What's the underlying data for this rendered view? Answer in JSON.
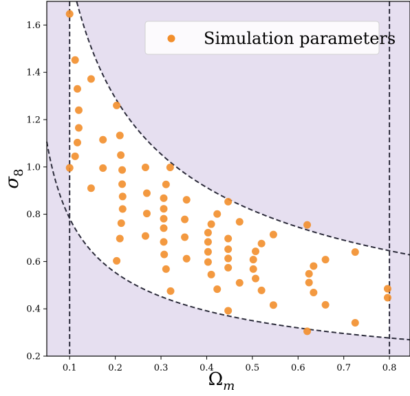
{
  "chart_data": {
    "type": "scatter",
    "xlabel": "Ω",
    "xlabel_sub": "m",
    "ylabel": "σ",
    "ylabel_sub": "8",
    "xlim": [
      0.05,
      0.845
    ],
    "ylim": [
      0.2,
      1.7
    ],
    "x_ticks": [
      0.1,
      0.2,
      0.3,
      0.4,
      0.5,
      0.6,
      0.7,
      0.8
    ],
    "x_tick_labels": [
      "0.1",
      "0.2",
      "0.3",
      "0.4",
      "0.5",
      "0.6",
      "0.7",
      "0.8"
    ],
    "y_ticks": [
      0.2,
      0.4,
      0.6,
      0.8,
      1.0,
      1.2,
      1.4,
      1.6
    ],
    "y_tick_labels": [
      "0.2",
      "0.4",
      "0.6",
      "0.8",
      "1.0",
      "1.2",
      "1.4",
      "1.6"
    ],
    "grid": false,
    "legend_position": "top-right",
    "colors": {
      "marker": "#f28e2b",
      "outside_region": "#e6dff0",
      "boundary_line": "#2b2b3a"
    },
    "boundaries": {
      "omega_m_min": 0.1,
      "omega_m_max": 0.8,
      "sigma8_upper_coeff": 0.5775,
      "sigma8_lower_coeff": 0.2475,
      "exponent": -0.5
    },
    "series": [
      {
        "name": "Simulation parameters",
        "points": [
          [
            0.1,
            1.647
          ],
          [
            0.1,
            0.996
          ],
          [
            0.112,
            1.452
          ],
          [
            0.112,
            1.045
          ],
          [
            0.117,
            1.33
          ],
          [
            0.117,
            1.103
          ],
          [
            0.12,
            1.24
          ],
          [
            0.12,
            1.165
          ],
          [
            0.147,
            1.372
          ],
          [
            0.147,
            0.91
          ],
          [
            0.173,
            1.115
          ],
          [
            0.173,
            0.995
          ],
          [
            0.203,
            1.26
          ],
          [
            0.203,
            0.603
          ],
          [
            0.21,
            1.133
          ],
          [
            0.21,
            0.697
          ],
          [
            0.212,
            1.05
          ],
          [
            0.213,
            0.762
          ],
          [
            0.215,
            0.987
          ],
          [
            0.215,
            0.927
          ],
          [
            0.216,
            0.875
          ],
          [
            0.216,
            0.822
          ],
          [
            0.266,
            0.998
          ],
          [
            0.266,
            0.708
          ],
          [
            0.269,
            0.889
          ],
          [
            0.269,
            0.803
          ],
          [
            0.32,
            0.998
          ],
          [
            0.321,
            0.475
          ],
          [
            0.306,
            0.823
          ],
          [
            0.306,
            0.868
          ],
          [
            0.306,
            0.781
          ],
          [
            0.306,
            0.741
          ],
          [
            0.306,
            0.683
          ],
          [
            0.307,
            0.63
          ],
          [
            0.311,
            0.926
          ],
          [
            0.311,
            0.568
          ],
          [
            0.352,
            0.778
          ],
          [
            0.352,
            0.703
          ],
          [
            0.356,
            0.861
          ],
          [
            0.356,
            0.612
          ],
          [
            0.403,
            0.722
          ],
          [
            0.403,
            0.683
          ],
          [
            0.403,
            0.641
          ],
          [
            0.403,
            0.598
          ],
          [
            0.41,
            0.758
          ],
          [
            0.41,
            0.545
          ],
          [
            0.423,
            0.801
          ],
          [
            0.423,
            0.483
          ],
          [
            0.447,
            0.853
          ],
          [
            0.447,
            0.392
          ],
          [
            0.447,
            0.697
          ],
          [
            0.447,
            0.652
          ],
          [
            0.447,
            0.613
          ],
          [
            0.447,
            0.574
          ],
          [
            0.472,
            0.768
          ],
          [
            0.472,
            0.51
          ],
          [
            0.502,
            0.608
          ],
          [
            0.502,
            0.568
          ],
          [
            0.507,
            0.643
          ],
          [
            0.507,
            0.528
          ],
          [
            0.52,
            0.676
          ],
          [
            0.52,
            0.478
          ],
          [
            0.546,
            0.714
          ],
          [
            0.546,
            0.416
          ],
          [
            0.62,
            0.755
          ],
          [
            0.62,
            0.305
          ],
          [
            0.624,
            0.548
          ],
          [
            0.624,
            0.511
          ],
          [
            0.634,
            0.581
          ],
          [
            0.634,
            0.469
          ],
          [
            0.66,
            0.608
          ],
          [
            0.66,
            0.417
          ],
          [
            0.725,
            0.64
          ],
          [
            0.725,
            0.341
          ],
          [
            0.796,
            0.485
          ],
          [
            0.796,
            0.447
          ]
        ]
      }
    ]
  }
}
